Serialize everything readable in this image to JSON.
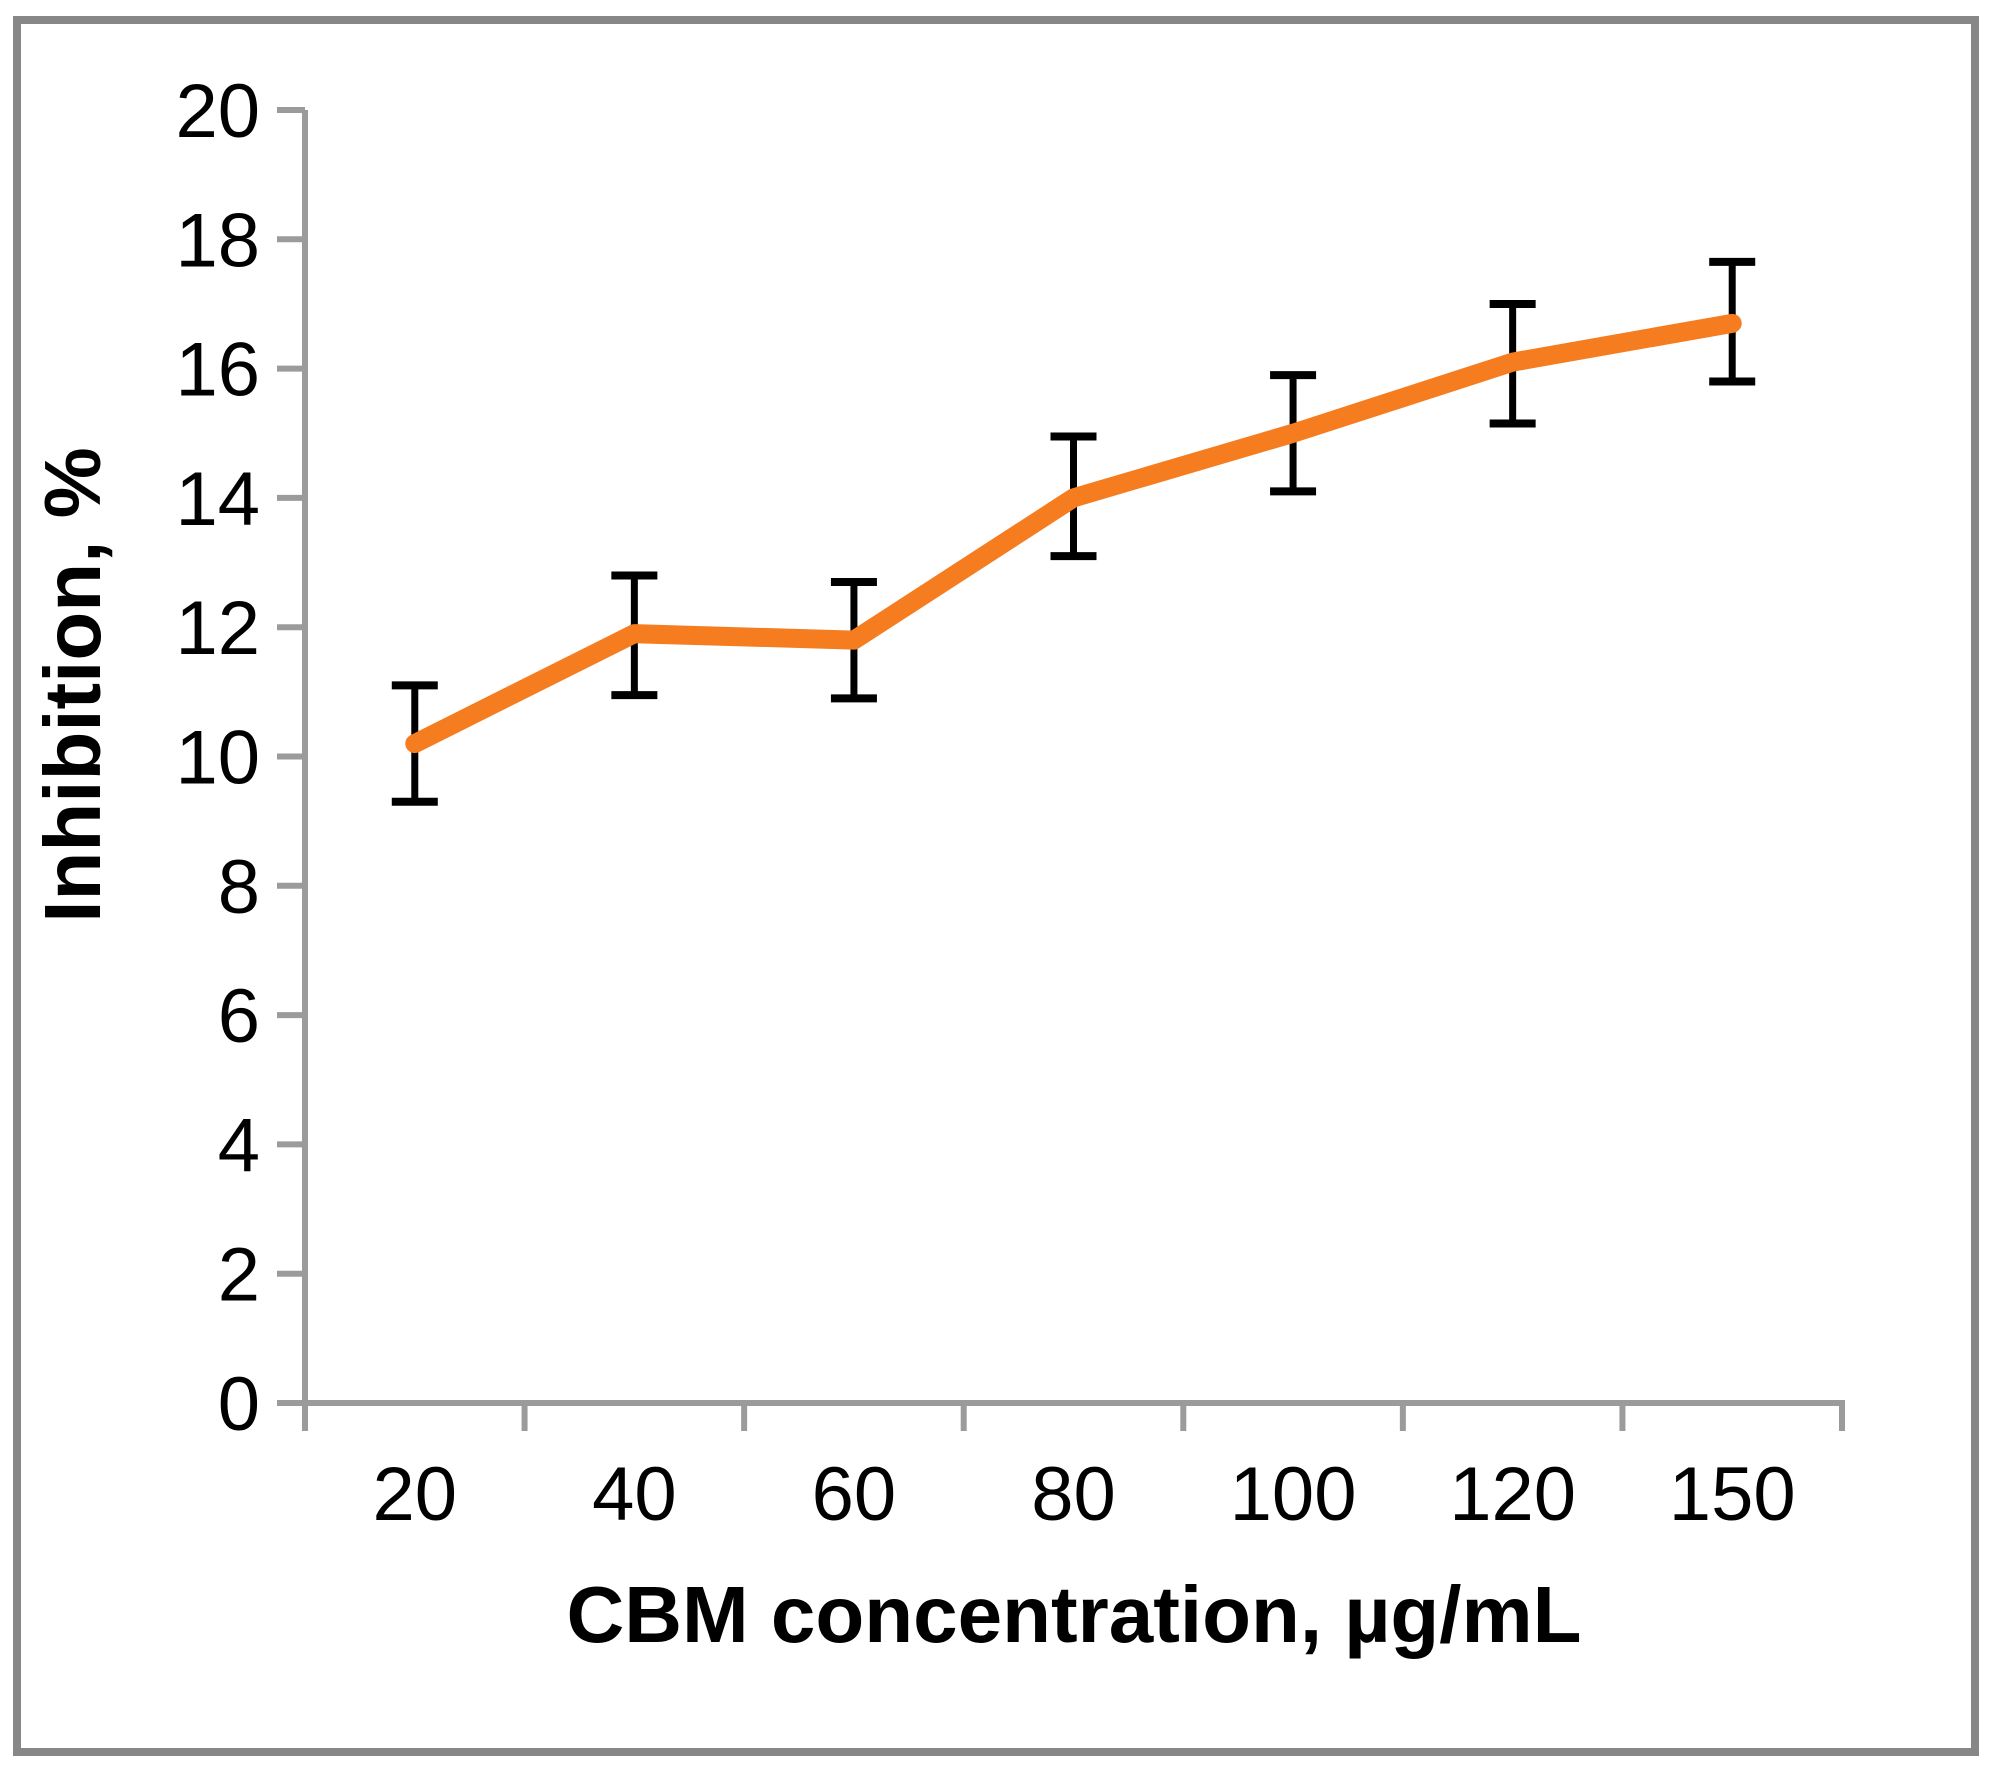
{
  "chart_data": {
    "type": "line",
    "title": "",
    "xlabel": "CBM concentration, µg/mL",
    "ylabel": "Inhibition, %",
    "categories": [
      "20",
      "40",
      "60",
      "80",
      "100",
      "120",
      "150"
    ],
    "series": [
      {
        "name": "Inhibition",
        "values": [
          10.2,
          11.9,
          11.8,
          14.0,
          15.0,
          16.1,
          16.7
        ],
        "error_plus": [
          0.9,
          0.9,
          0.9,
          0.95,
          0.9,
          0.9,
          0.95
        ],
        "error_minus": [
          0.9,
          0.95,
          0.9,
          0.9,
          0.9,
          0.95,
          0.9
        ],
        "line_color": "#F67C20",
        "error_bar_color": "#000000"
      }
    ],
    "ylim": [
      0,
      20
    ],
    "y_ticks": [
      0,
      2,
      4,
      6,
      8,
      10,
      12,
      14,
      16,
      18,
      20
    ],
    "grid": false,
    "legend_visible": false,
    "legend_position": "none",
    "axis_color": "#9B9B9B",
    "frame_color": "#878787",
    "background": "#FFFFFF"
  }
}
